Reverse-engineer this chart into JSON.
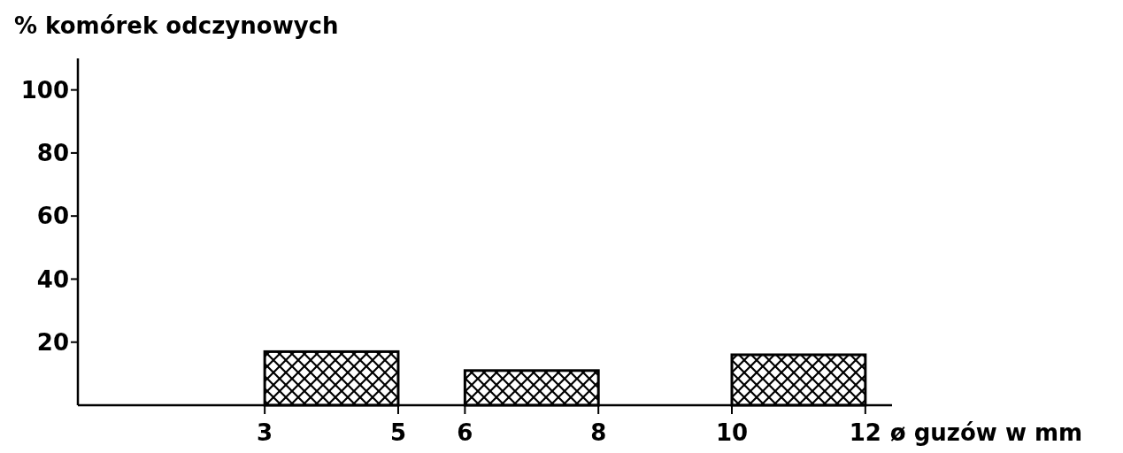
{
  "chart_data": {
    "type": "histogram",
    "ylabel": "% komórek odczynowych",
    "xlabel": "ø guzów w mm",
    "bins": [
      3,
      5,
      6,
      8,
      10,
      12
    ],
    "values": [
      17,
      null,
      11,
      null,
      16
    ],
    "color": "#000000",
    "xlim": [
      0.2,
      12.4
    ],
    "xticks": [
      3,
      5,
      6,
      8,
      10,
      12
    ],
    "ylim": [
      0,
      110
    ],
    "yticks": [
      20,
      40,
      60,
      80,
      100
    ],
    "grid": false
  }
}
